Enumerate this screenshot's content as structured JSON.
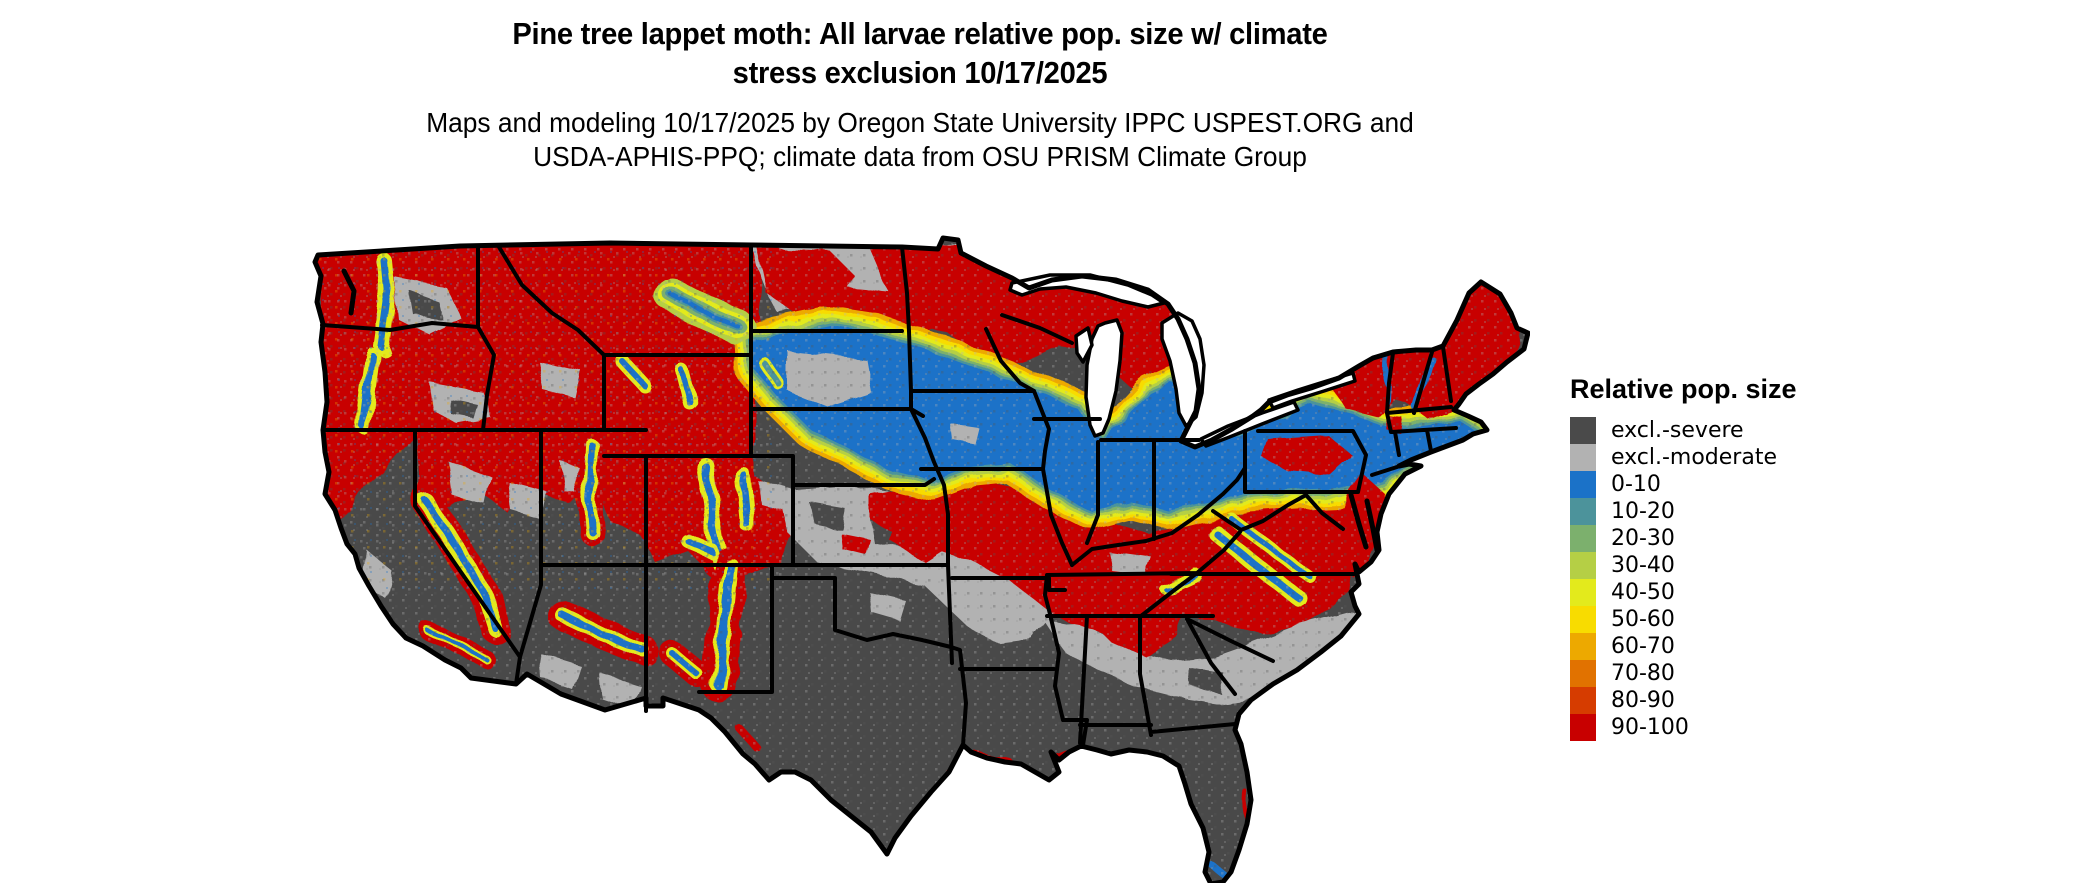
{
  "header": {
    "title_line1": "Pine tree lappet moth: All larvae relative pop. size w/ climate",
    "title_line2": "stress exclusion 10/17/2025",
    "subtitle_line1": "Maps and modeling 10/17/2025 by Oregon State University IPPC USPEST.ORG and",
    "subtitle_line2": "USDA-APHIS-PPQ; climate data from OSU PRISM Climate Group"
  },
  "map": {
    "region": "Contiguous United States",
    "kind": "raster choropleth of relative population size with climate stress exclusion"
  },
  "legend": {
    "title": "Relative pop. size",
    "items": [
      {
        "label": "excl.-severe",
        "color": "#4a4a4a"
      },
      {
        "label": "excl.-moderate",
        "color": "#b2b2b2"
      },
      {
        "label": "0-10",
        "color": "#1b72c8"
      },
      {
        "label": "10-20",
        "color": "#4c939b"
      },
      {
        "label": "20-30",
        "color": "#7cb06d"
      },
      {
        "label": "30-40",
        "color": "#b5cf45"
      },
      {
        "label": "40-50",
        "color": "#e3ea1c"
      },
      {
        "label": "50-60",
        "color": "#f8dc00"
      },
      {
        "label": "60-70",
        "color": "#eda900"
      },
      {
        "label": "70-80",
        "color": "#e17200"
      },
      {
        "label": "80-90",
        "color": "#d63c00"
      },
      {
        "label": "90-100",
        "color": "#c80000"
      }
    ]
  }
}
